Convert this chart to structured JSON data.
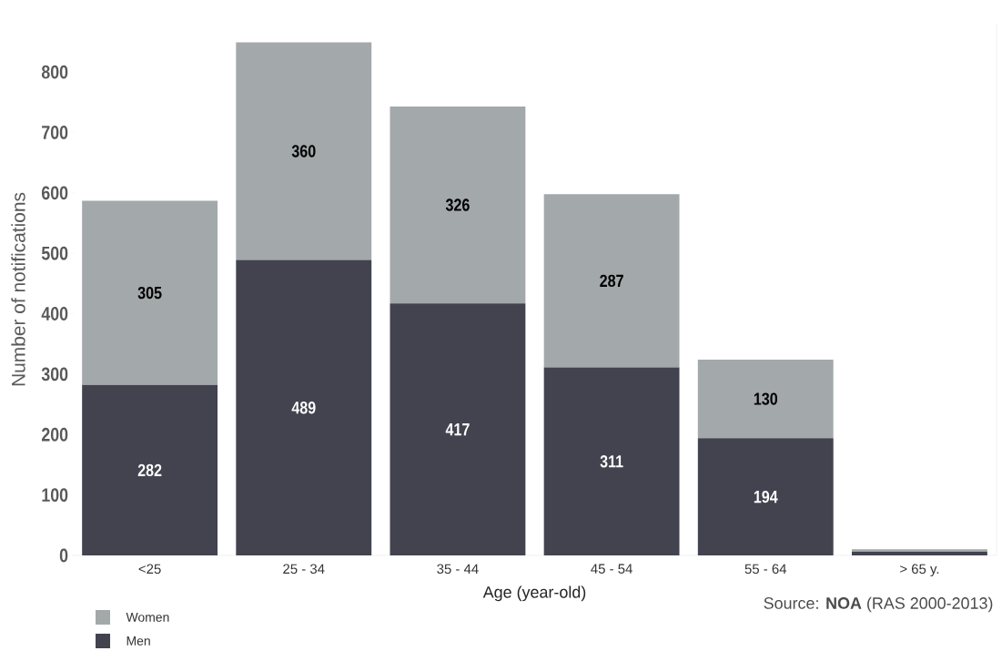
{
  "chart_data": {
    "type": "bar",
    "stacked": true,
    "categories": [
      "<25",
      "25 - 34",
      "35 - 44",
      "45 - 54",
      "55 - 64",
      "> 65 y."
    ],
    "series": [
      {
        "name": "Men",
        "color": "#42434f",
        "values": [
          282,
          489,
          417,
          311,
          194,
          6
        ],
        "value_labels": [
          "282",
          "489",
          "417",
          "311",
          "194",
          null
        ]
      },
      {
        "name": "Women",
        "color": "#a3a8ab",
        "values": [
          305,
          360,
          326,
          287,
          130,
          4
        ],
        "value_labels": [
          "305",
          "360",
          "326",
          "287",
          "130",
          null
        ]
      }
    ],
    "xlabel": "Age (year-old)",
    "ylabel": "Number of notifications",
    "ylim": [
      0,
      880
    ],
    "yticks": [
      0,
      100,
      200,
      300,
      400,
      500,
      600,
      700,
      800
    ],
    "legend": "bottom left",
    "grid": false,
    "annotations": [
      "Source: **NOA** (RAS 2000-2013)"
    ]
  }
}
